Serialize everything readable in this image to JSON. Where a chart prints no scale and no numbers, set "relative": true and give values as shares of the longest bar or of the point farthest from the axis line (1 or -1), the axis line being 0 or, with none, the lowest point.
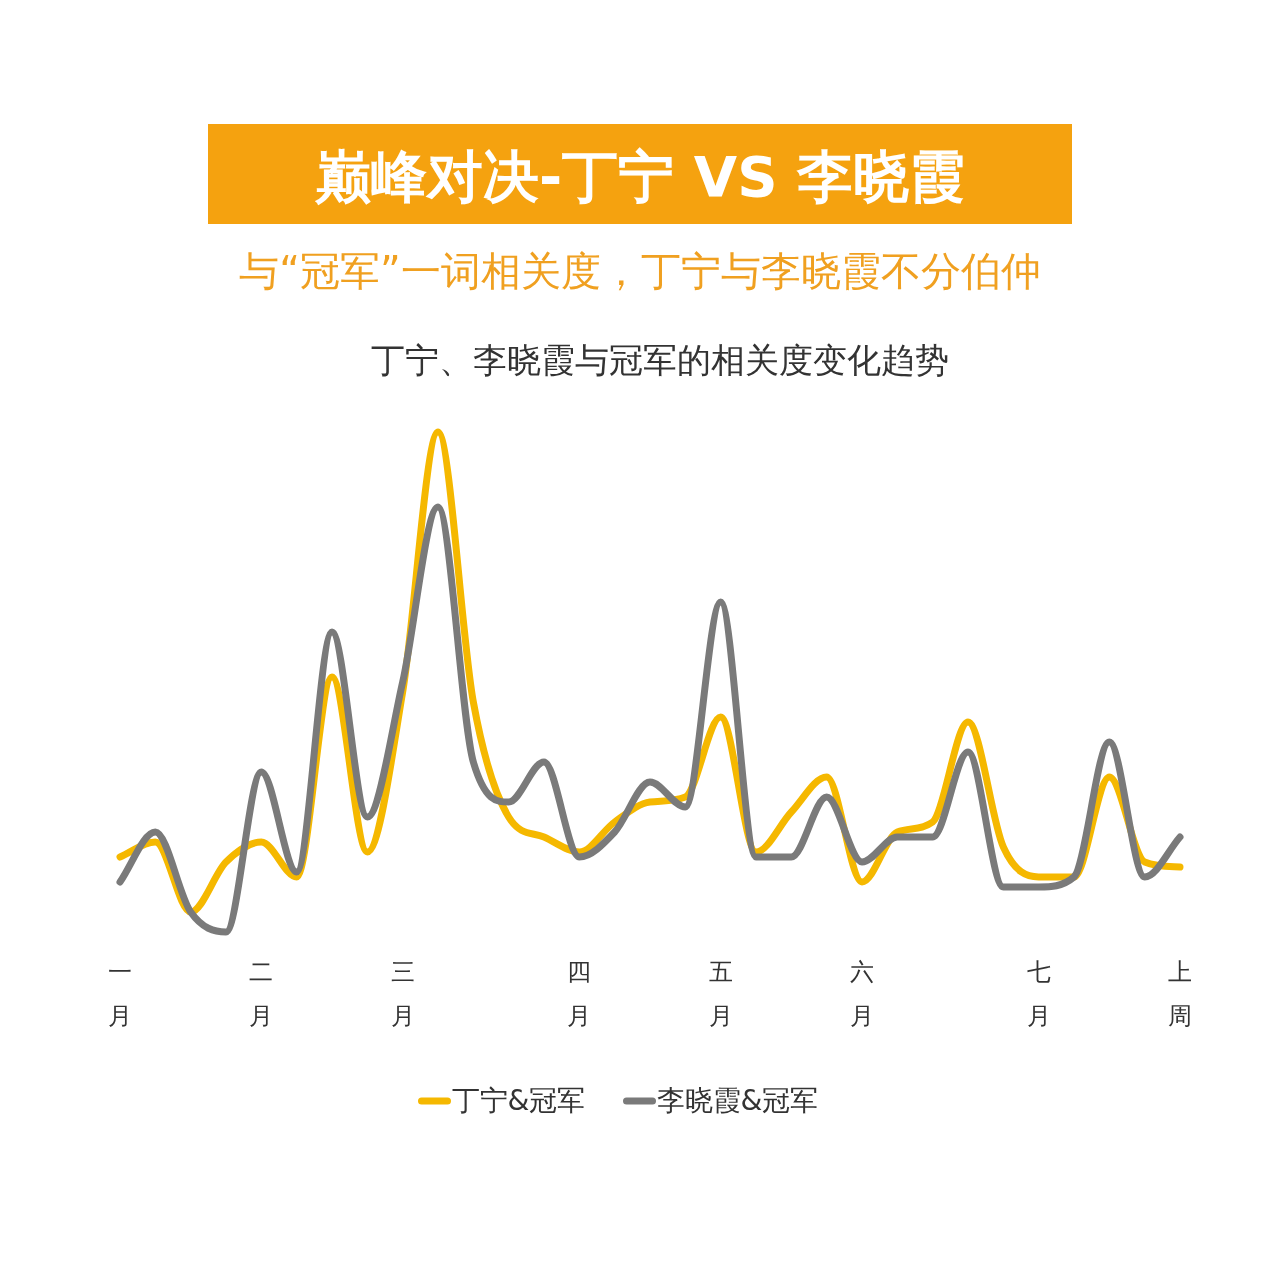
{
  "chart_data": {
    "type": "line",
    "title": "巅峰对决-丁宁 VS 李晓霞",
    "subtitle": "与“冠军”一词相关度，丁宁与李晓霞不分伯仲",
    "annotations": [
      "丁宁、李晓霞与冠军的相关度变化趋势"
    ],
    "relative": true,
    "legend": "bottom",
    "categories": [
      "一月",
      null,
      null,
      null,
      "二月",
      null,
      null,
      null,
      "三月",
      null,
      null,
      null,
      null,
      "四月",
      null,
      null,
      null,
      "五月",
      null,
      null,
      null,
      "六月",
      null,
      null,
      null,
      null,
      "七月",
      null,
      null,
      null,
      "上周"
    ],
    "series": [
      {
        "name": "丁宁&冠军",
        "color": "#f5b800",
        "values": [
          0.15,
          0.18,
          0.04,
          0.14,
          0.18,
          0.11,
          0.51,
          0.16,
          0.48,
          1,
          0.46,
          0.23,
          0.19,
          0.16,
          0.22,
          0.26,
          0.27,
          0.43,
          0.16,
          0.24,
          0.31,
          0.1,
          0.2,
          0.22,
          0.42,
          0.17,
          0.11,
          0.11,
          0.31,
          0.14,
          0.13
        ]
      },
      {
        "name": "李晓霞&冠军",
        "color": "#7a7a7a",
        "values": [
          0.1,
          0.2,
          0.04,
          0,
          0.32,
          0.12,
          0.6,
          0.23,
          0.5,
          0.85,
          0.34,
          0.26,
          0.34,
          0.15,
          0.2,
          0.3,
          0.25,
          0.66,
          0.15,
          0.15,
          0.27,
          0.14,
          0.19,
          0.19,
          0.36,
          0.09,
          0.09,
          0.11,
          0.38,
          0.11,
          0.19
        ]
      }
    ]
  }
}
